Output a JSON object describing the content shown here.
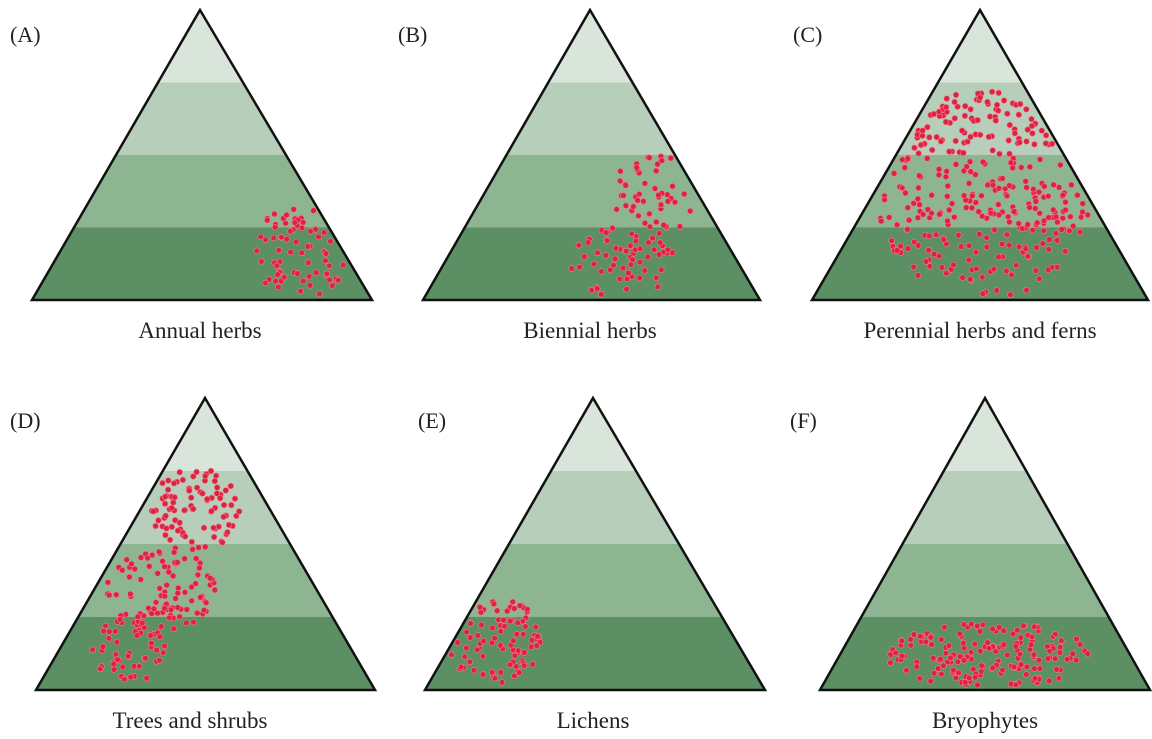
{
  "panels": [
    {
      "letter": "(A)",
      "caption": "Annual herbs"
    },
    {
      "letter": "(B)",
      "caption": "Biennial herbs"
    },
    {
      "letter": "(C)",
      "caption": "Perennial herbs and ferns"
    },
    {
      "letter": "(D)",
      "caption": "Trees and shrubs"
    },
    {
      "letter": "(E)",
      "caption": "Lichens"
    },
    {
      "letter": "(F)",
      "caption": "Bryophytes"
    }
  ]
}
